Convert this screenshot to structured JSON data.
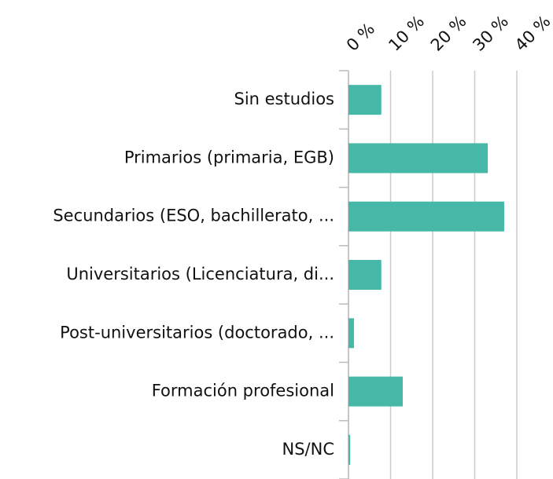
{
  "chart_data": {
    "type": "bar",
    "orientation": "horizontal",
    "categories": [
      "Sin estudios",
      "Primarios (primaria, EGB)",
      "Secundarios (ESO, bachillerato, ...",
      "Universitarios (Licenciatura, di...",
      "Post-universitarios (doctorado, ...",
      "Formación profesional",
      "NS/NC"
    ],
    "values": [
      7.8,
      33.1,
      37.0,
      7.8,
      1.3,
      12.9,
      0.4
    ],
    "color": "#45b8a7",
    "xlim": [
      0,
      40
    ],
    "xticks": [
      {
        "value": 0,
        "label": "0 %"
      },
      {
        "value": 10,
        "label": "10 %"
      },
      {
        "value": 20,
        "label": "20 %"
      },
      {
        "value": 30,
        "label": "30 %"
      },
      {
        "value": 40,
        "label": "40 %"
      }
    ],
    "grid": true
  }
}
